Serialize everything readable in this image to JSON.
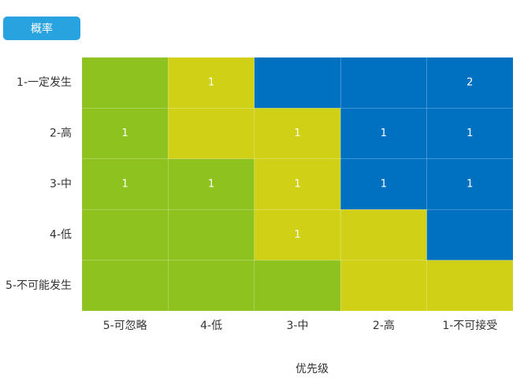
{
  "chart_data": {
    "type": "heatmap",
    "button_label": "概率",
    "x_label": "优先级",
    "x_categories": [
      "5-可忽略",
      "4-低",
      "3-中",
      "2-高",
      "1-不可接受"
    ],
    "y_categories": [
      "1-一定发生",
      "2-高",
      "3-中",
      "4-低",
      "5-不可能发生"
    ],
    "values": [
      [
        null,
        1,
        null,
        null,
        2
      ],
      [
        1,
        null,
        1,
        1,
        1
      ],
      [
        1,
        1,
        1,
        1,
        1
      ],
      [
        null,
        null,
        1,
        null,
        null
      ],
      [
        null,
        null,
        null,
        null,
        null
      ]
    ],
    "cell_colors": [
      [
        "#8dc21f",
        "#d0d116",
        "#0070c0",
        "#0070c0",
        "#0070c0"
      ],
      [
        "#8dc21f",
        "#d0d116",
        "#d0d116",
        "#0070c0",
        "#0070c0"
      ],
      [
        "#8dc21f",
        "#8dc21f",
        "#d0d116",
        "#0070c0",
        "#0070c0"
      ],
      [
        "#8dc21f",
        "#8dc21f",
        "#d0d116",
        "#d0d116",
        "#0070c0"
      ],
      [
        "#8dc21f",
        "#8dc21f",
        "#8dc21f",
        "#d0d116",
        "#d0d116"
      ]
    ]
  }
}
